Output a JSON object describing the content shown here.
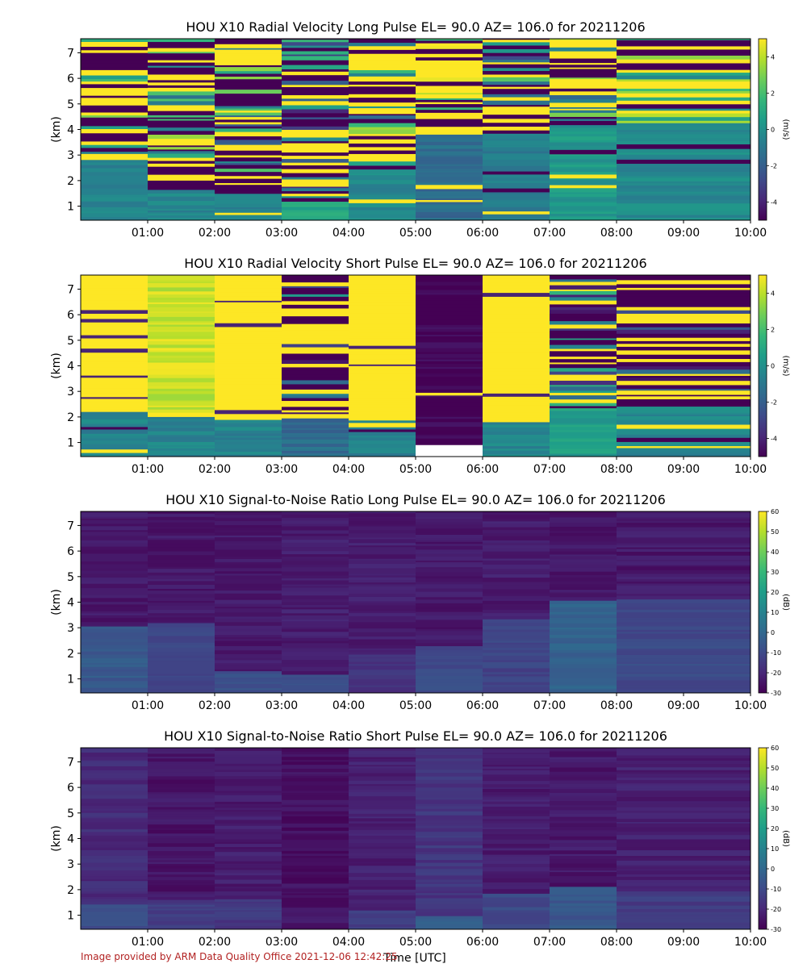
{
  "figure": {
    "xlabel": "Time [UTC]",
    "footer": "Image provided by ARM Data Quality Office 2021-12-06 12:42:25"
  },
  "chart_data": [
    {
      "type": "heatmap",
      "title": "HOU X10 Radial Velocity Long Pulse EL= 90.0 AZ= 106.0 for 20211206",
      "ylabel": "(km)",
      "xlim": [
        0,
        10
      ],
      "ylim": [
        0.45,
        7.55
      ],
      "x_ticks": [
        "01:00",
        "02:00",
        "03:00",
        "04:00",
        "05:00",
        "06:00",
        "07:00",
        "08:00",
        "09:00",
        "10:00"
      ],
      "y_ticks": [
        "1",
        "2",
        "3",
        "4",
        "5",
        "6",
        "7"
      ],
      "colorbar": {
        "label": "(m/s)",
        "vmin": -5,
        "vmax": 5,
        "ticks": [
          "-4",
          "-2",
          "0",
          "2",
          "4"
        ],
        "colormap": "viridis"
      },
      "blocks": [
        {
          "t0": 0,
          "t1": 1,
          "base": -0.5,
          "base_top": 3.1,
          "upper_mode": "mixed",
          "upper_mean": 0
        },
        {
          "t0": 1,
          "t1": 2,
          "base": -0.5,
          "base_top": 1.6,
          "upper_mode": "mixed",
          "upper_mean": 0.5
        },
        {
          "t0": 2,
          "t1": 3,
          "base": -0.5,
          "base_top": 1.4,
          "upper_mode": "mixed",
          "upper_mean": 0.5
        },
        {
          "t0": 3,
          "t1": 4,
          "base": 0.8,
          "base_top": 1.4,
          "upper_mode": "mixed",
          "upper_mean": -1
        },
        {
          "t0": 4,
          "t1": 5,
          "base": -0.3,
          "base_top": 2.4,
          "upper_mode": "mixed",
          "upper_mean": 1.5
        },
        {
          "t0": 5,
          "t1": 6,
          "base": -1.5,
          "base_top": 3.7,
          "upper_mode": "mixed",
          "upper_mean": 3
        },
        {
          "t0": 6,
          "t1": 7,
          "base": -0.8,
          "base_top": 3.8,
          "upper_mode": "mixed",
          "upper_mean": 0
        },
        {
          "t0": 7,
          "t1": 8,
          "base": 0.3,
          "base_top": 4.1,
          "upper_mode": "mixed",
          "upper_mean": 1
        },
        {
          "t0": 8,
          "t1": 10,
          "base": -0.3,
          "base_top": 4.2,
          "upper_mode": "mixed",
          "upper_mean": 2
        }
      ]
    },
    {
      "type": "heatmap",
      "title": "HOU X10 Radial Velocity Short Pulse EL= 90.0 AZ= 106.0 for 20211206",
      "ylabel": "(km)",
      "xlim": [
        0,
        10
      ],
      "ylim": [
        0.45,
        7.55
      ],
      "x_ticks": [
        "01:00",
        "02:00",
        "03:00",
        "04:00",
        "05:00",
        "06:00",
        "07:00",
        "08:00",
        "09:00",
        "10:00"
      ],
      "y_ticks": [
        "1",
        "2",
        "3",
        "4",
        "5",
        "6",
        "7"
      ],
      "colorbar": {
        "label": "(m/s)",
        "vmin": -5,
        "vmax": 5,
        "ticks": [
          "-4",
          "-2",
          "0",
          "2",
          "4"
        ],
        "colormap": "viridis"
      },
      "blocks": [
        {
          "t0": 0,
          "t1": 1,
          "base": -0.5,
          "base_top": 2.2,
          "upper_mode": "solid",
          "upper_mean": 5
        },
        {
          "t0": 1,
          "t1": 2,
          "base": -0.5,
          "base_top": 2.1,
          "upper_mode": "banded",
          "upper_mean": 4.2
        },
        {
          "t0": 2,
          "t1": 3,
          "base": -0.5,
          "base_top": 1.9,
          "upper_mode": "solid",
          "upper_mean": 5
        },
        {
          "t0": 3,
          "t1": 4,
          "base": -1.5,
          "base_top": 1.9,
          "upper_mode": "mixed",
          "upper_mean": -2.5
        },
        {
          "t0": 4,
          "t1": 5,
          "base": -0.5,
          "base_top": 1.8,
          "upper_mode": "solid",
          "upper_mean": 5
        },
        {
          "t0": 5,
          "t1": 6,
          "base": -5,
          "base_top": 7.6,
          "upper_mode": "solid",
          "upper_mean": -5,
          "bottom_gap": 0.9
        },
        {
          "t0": 6,
          "t1": 7,
          "base": -0.5,
          "base_top": 1.8,
          "upper_mode": "solid",
          "upper_mean": 5
        },
        {
          "t0": 7,
          "t1": 8,
          "base": 0.5,
          "base_top": 2.3,
          "upper_mode": "mixed",
          "upper_mean": -1.5
        },
        {
          "t0": 8,
          "t1": 10,
          "base": -0.5,
          "base_top": 2.3,
          "upper_mode": "mixed",
          "upper_mean": -3
        }
      ]
    },
    {
      "type": "heatmap",
      "title": "HOU X10 Signal-to-Noise Ratio Long Pulse EL= 90.0 AZ= 106.0 for 20211206",
      "ylabel": "(km)",
      "xlim": [
        0,
        10
      ],
      "ylim": [
        0.45,
        7.55
      ],
      "x_ticks": [
        "01:00",
        "02:00",
        "03:00",
        "04:00",
        "05:00",
        "06:00",
        "07:00",
        "08:00",
        "09:00",
        "10:00"
      ],
      "y_ticks": [
        "1",
        "2",
        "3",
        "4",
        "5",
        "6",
        "7"
      ],
      "colorbar": {
        "label": "(dB)",
        "vmin": -30,
        "vmax": 60,
        "ticks": [
          "-30",
          "-20",
          "-10",
          "0",
          "10",
          "20",
          "30",
          "40",
          "50",
          "60"
        ],
        "colormap": "viridis"
      },
      "blocks": [
        {
          "t0": 0,
          "t1": 1,
          "base": -5,
          "base_top": 3.0,
          "upper_mode": "noise",
          "upper_mean": -24
        },
        {
          "t0": 1,
          "t1": 2,
          "base": -12,
          "base_top": 3.1,
          "upper_mode": "noise",
          "upper_mean": -24
        },
        {
          "t0": 2,
          "t1": 3,
          "base": -8,
          "base_top": 1.3,
          "upper_mode": "noise",
          "upper_mean": -24
        },
        {
          "t0": 3,
          "t1": 4,
          "base": -8,
          "base_top": 1.1,
          "upper_mode": "noise",
          "upper_mean": -23
        },
        {
          "t0": 4,
          "t1": 5,
          "base": -17,
          "base_top": 1.9,
          "upper_mode": "noise",
          "upper_mean": -23
        },
        {
          "t0": 5,
          "t1": 6,
          "base": -10,
          "base_top": 2.2,
          "upper_mode": "noise",
          "upper_mean": -24
        },
        {
          "t0": 6,
          "t1": 7,
          "base": -12,
          "base_top": 3.3,
          "upper_mode": "noise",
          "upper_mean": -23
        },
        {
          "t0": 7,
          "t1": 8,
          "base": -2,
          "base_top": 4.0,
          "upper_mode": "noise",
          "upper_mean": -24
        },
        {
          "t0": 8,
          "t1": 10,
          "base": -10,
          "base_top": 4.0,
          "upper_mode": "noise",
          "upper_mean": -24
        }
      ]
    },
    {
      "type": "heatmap",
      "title": "HOU X10 Signal-to-Noise Ratio Short Pulse EL= 90.0 AZ= 106.0 for 20211206",
      "ylabel": "(km)",
      "xlim": [
        0,
        10
      ],
      "ylim": [
        0.45,
        7.55
      ],
      "x_ticks": [
        "01:00",
        "02:00",
        "03:00",
        "04:00",
        "05:00",
        "06:00",
        "07:00",
        "08:00",
        "09:00",
        "10:00"
      ],
      "y_ticks": [
        "1",
        "2",
        "3",
        "4",
        "5",
        "6",
        "7"
      ],
      "colorbar": {
        "label": "(dB)",
        "vmin": -30,
        "vmax": 60,
        "ticks": [
          "-30",
          "-20",
          "-10",
          "0",
          "10",
          "20",
          "30",
          "40",
          "50",
          "60"
        ],
        "colormap": "viridis"
      },
      "blocks": [
        {
          "t0": 0,
          "t1": 1,
          "base": -8,
          "base_top": 1.4,
          "upper_mode": "noise",
          "upper_mean": -19
        },
        {
          "t0": 1,
          "t1": 2,
          "base": -14,
          "base_top": 1.6,
          "upper_mode": "noise",
          "upper_mean": -25
        },
        {
          "t0": 2,
          "t1": 3,
          "base": -15,
          "base_top": 1.6,
          "upper_mode": "noise",
          "upper_mean": -23
        },
        {
          "t0": 3,
          "t1": 4,
          "base": -25,
          "base_top": 1.2,
          "upper_mode": "noise",
          "upper_mean": -26
        },
        {
          "t0": 4,
          "t1": 5,
          "base": -14,
          "base_top": 1.2,
          "upper_mode": "noise",
          "upper_mean": -22
        },
        {
          "t0": 5,
          "t1": 6,
          "base": -4,
          "base_top": 0.95,
          "upper_mode": "noise",
          "upper_mean": -16
        },
        {
          "t0": 6,
          "t1": 7,
          "base": -10,
          "base_top": 1.8,
          "upper_mode": "noise",
          "upper_mean": -23
        },
        {
          "t0": 7,
          "t1": 8,
          "base": -6,
          "base_top": 2.1,
          "upper_mode": "noise",
          "upper_mean": -24
        },
        {
          "t0": 8,
          "t1": 10,
          "base": -14,
          "base_top": 1.9,
          "upper_mode": "noise",
          "upper_mean": -22
        }
      ]
    }
  ]
}
